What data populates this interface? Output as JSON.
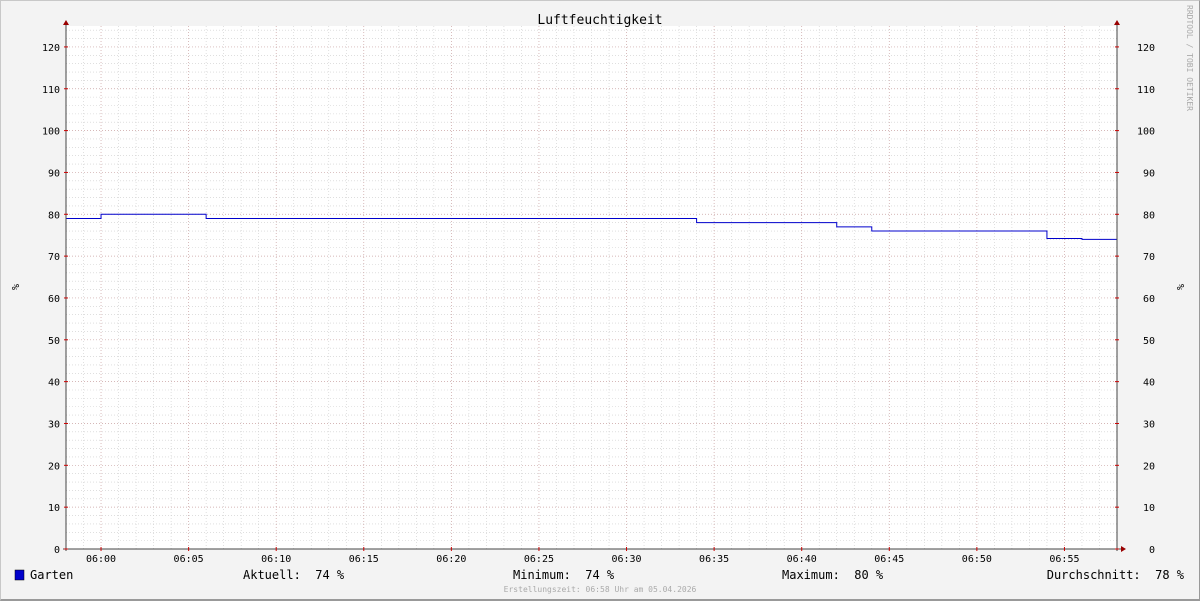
{
  "chart_data": {
    "type": "line",
    "title": "Luftfeuchtigkeit",
    "ylabel": "%",
    "y2label": "%",
    "watermark": "RRDTOOL / TOBI OETIKER",
    "xlim": [
      "05:58",
      "06:58"
    ],
    "ylim": [
      0,
      125
    ],
    "yticks": [
      0,
      10,
      20,
      30,
      40,
      50,
      60,
      70,
      80,
      90,
      100,
      110,
      120
    ],
    "xticks": [
      "06:00",
      "06:05",
      "06:10",
      "06:15",
      "06:20",
      "06:25",
      "06:30",
      "06:35",
      "06:40",
      "06:45",
      "06:50",
      "06:55"
    ],
    "grid": true,
    "step": true,
    "series": [
      {
        "name": "Garten",
        "color": "#0000cc",
        "points": [
          [
            "05:58",
            79
          ],
          [
            "06:00",
            80
          ],
          [
            "06:06",
            79
          ],
          [
            "06:34",
            78
          ],
          [
            "06:42",
            77
          ],
          [
            "06:44",
            76
          ],
          [
            "06:54",
            74.2
          ],
          [
            "06:56",
            74
          ],
          [
            "06:58",
            74
          ]
        ]
      }
    ],
    "legend": {
      "placement": "bottom",
      "series_name": "Garten",
      "current": "Aktuell:  74 %",
      "minimum": "Minimum:  74 %",
      "maximum": "Maximum:  80 %",
      "average": "Durchschnitt:  78 %"
    },
    "footer": "Erstellungszeit: 06:58 Uhr am 05.04.2026"
  }
}
